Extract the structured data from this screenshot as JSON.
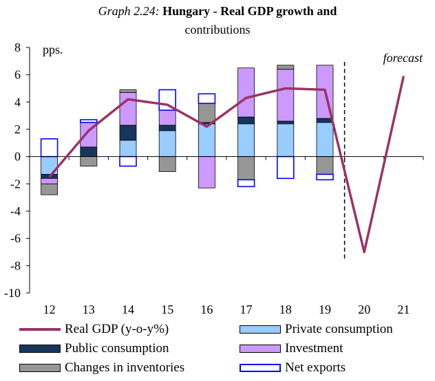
{
  "title": {
    "number": "Graph 2.24:",
    "line1": "Hungary - Real GDP growth and",
    "line2": "contributions"
  },
  "chart_data": {
    "type": "bar",
    "stacked": true,
    "categories": [
      "12",
      "13",
      "14",
      "15",
      "16",
      "17",
      "18",
      "19",
      "20",
      "21"
    ],
    "ylabel": "pps.",
    "ylim": [
      -10,
      8
    ],
    "yticks": [
      -10,
      -8,
      -6,
      -4,
      -2,
      0,
      2,
      4,
      6,
      8
    ],
    "forecast_label": "forecast",
    "forecast_divider_after": "19",
    "grid": false,
    "legend_position": "bottom",
    "colors": {
      "gdp_line": "#993366",
      "private": "#99ccff",
      "public": "#17365d",
      "investment": "#cc99ff",
      "inventories": "#969696",
      "net_exports_border": "#0000ff",
      "bar_border": "#000000"
    },
    "series": [
      {
        "name": "Private consumption",
        "key": "private",
        "values": [
          -1.3,
          0.0,
          1.2,
          1.9,
          2.4,
          2.4,
          2.4,
          2.5,
          null,
          null
        ]
      },
      {
        "name": "Public consumption",
        "key": "public",
        "values": [
          -0.3,
          0.7,
          1.1,
          0.4,
          0.1,
          0.5,
          0.2,
          0.3,
          null,
          null
        ]
      },
      {
        "name": "Investment",
        "key": "investment",
        "values": [
          -0.4,
          1.8,
          2.4,
          1.1,
          -2.3,
          3.6,
          3.8,
          3.9,
          null,
          null
        ]
      },
      {
        "name": "Changes in inventories",
        "key": "inventories",
        "values": [
          -0.8,
          -0.7,
          0.2,
          -1.1,
          1.4,
          -1.7,
          0.3,
          -1.3,
          null,
          null
        ]
      },
      {
        "name": "Net exports",
        "key": "net_exports",
        "values": [
          1.3,
          0.2,
          -0.7,
          1.5,
          0.7,
          -0.5,
          -1.6,
          -0.4,
          null,
          null
        ]
      }
    ],
    "line": {
      "name": "Real GDP (y-o-y%)",
      "key": "gdp",
      "values": [
        -1.5,
        1.9,
        4.2,
        3.8,
        2.2,
        4.3,
        5.0,
        4.9,
        -7.0,
        5.9
      ]
    }
  },
  "legend": {
    "gdp": "Real GDP (y-o-y%)",
    "private": "Private consumption",
    "public": "Public consumption",
    "investment": "Investment",
    "inventories": "Changes in inventories",
    "net_exports": "Net exports"
  }
}
